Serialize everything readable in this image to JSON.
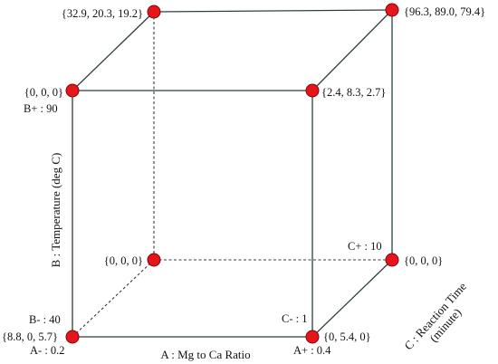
{
  "vertices": {
    "front_top_left": "{0, 0, 0}",
    "front_top_right": "{2.4, 8.3, 2.7}",
    "back_top_left": "{32.9, 20.3, 19.2}",
    "back_top_right": "{96.3, 89.0, 79.4}",
    "back_bottom_left": "{0, 0, 0}",
    "back_bottom_right": "{0, 0, 0}",
    "front_bottom_left": "{8.8, 0, 5.7}",
    "front_bottom_right": "{0, 5.4, 0}"
  },
  "levels": {
    "a_minus": "A- : 0.2",
    "a_plus": "A+ : 0.4",
    "b_minus": "B- : 40",
    "b_plus": "B+ : 90",
    "c_minus": "C- : 1",
    "c_plus": "C+ : 10"
  },
  "axes": {
    "a_label": "A : Mg to Ca Ratio",
    "b_label": "B : Temperature (deg C)",
    "c_label_line1": "C : Reaction Time",
    "c_label_line2": "(minute)"
  },
  "colors": {
    "vertex_fill": "#e8141b",
    "edge": "#2f3f3f"
  }
}
